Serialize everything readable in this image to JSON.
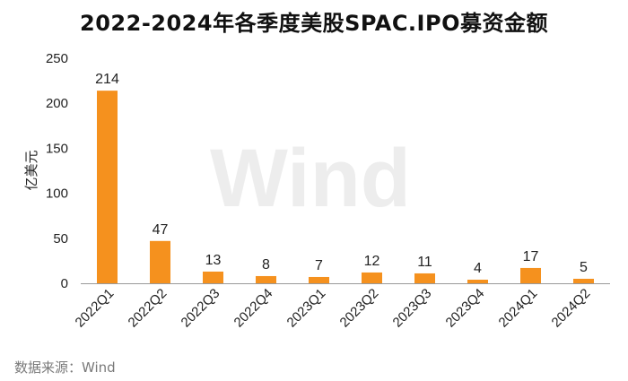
{
  "colors": {
    "bar": "#F5911E",
    "axis": "#999999",
    "watermark": "#ededed"
  },
  "watermark": "Wind",
  "source": "数据来源：Wind",
  "chart_data": {
    "type": "bar",
    "title": "2022-2024年各季度美股SPAC.IPO募资金额",
    "xlabel": "",
    "ylabel": "亿美元",
    "categories": [
      "2022Q1",
      "2022Q2",
      "2022Q3",
      "2022Q4",
      "2023Q1",
      "2023Q2",
      "2023Q3",
      "2023Q4",
      "2024Q1",
      "2024Q2"
    ],
    "values": [
      214,
      47,
      13,
      8,
      7,
      12,
      11,
      4,
      17,
      5
    ],
    "ylim": [
      0,
      250
    ],
    "yticks": [
      0,
      50,
      100,
      150,
      200,
      250
    ],
    "data_labels": true,
    "grid": false,
    "legend": "none"
  }
}
